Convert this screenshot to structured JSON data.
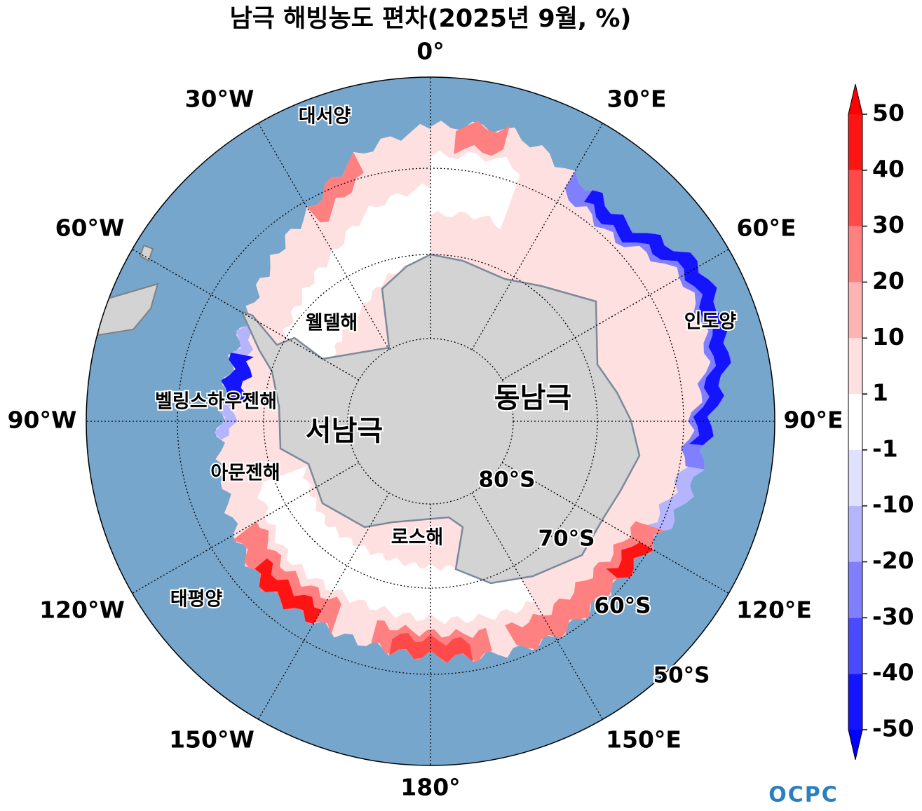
{
  "title": "남극 해빙농도 편차(2025년 9월, %)",
  "longitude_labels": [
    "0°",
    "30°E",
    "60°E",
    "90°E",
    "120°E",
    "150°E",
    "180°",
    "150°W",
    "120°W",
    "90°W",
    "60°W",
    "30°W"
  ],
  "latitude_labels": [
    "80°S",
    "70°S",
    "60°S",
    "50°S"
  ],
  "region_labels": [
    "대서양",
    "웰델해",
    "벨링스하우젠해",
    "아문젠해",
    "태평양",
    "로스해",
    "인도양",
    "동남극",
    "서남극"
  ],
  "colorbar": {
    "levels": [
      -50,
      -40,
      -30,
      -20,
      -10,
      -1,
      1,
      10,
      20,
      30,
      40,
      50
    ],
    "colors": [
      "#1414ff",
      "#4a4aff",
      "#8080ff",
      "#b4b4ff",
      "#e0e0ff",
      "#ffffff",
      "#ffe0e0",
      "#ffb4b4",
      "#ff8080",
      "#ff4a4a",
      "#ff1414"
    ],
    "under_color": "#0000ff",
    "over_color": "#ff0000"
  },
  "logo": "OCPC"
}
